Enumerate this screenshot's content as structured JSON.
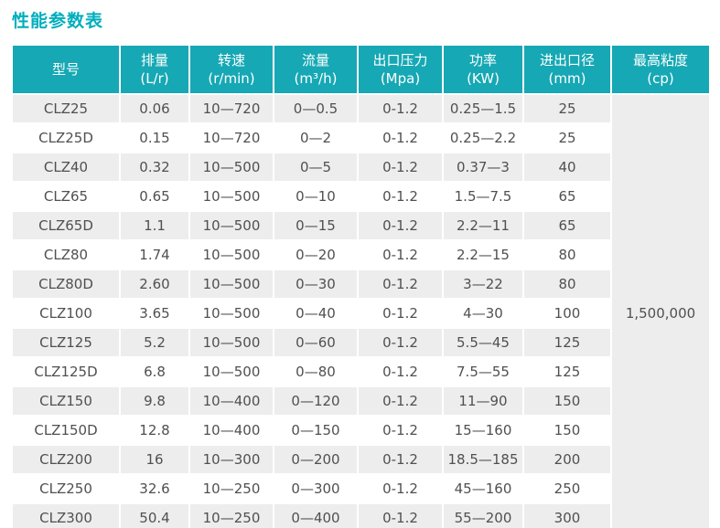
{
  "page_title": "性能参数表",
  "colors": {
    "accent_teal": "#16a8b4",
    "title_teal": "#00aebd",
    "row_stripe": "#ededed",
    "cell_text": "#4f5052",
    "header_text": "#ffffff"
  },
  "table": {
    "columns": [
      {
        "label": "型号",
        "unit": ""
      },
      {
        "label": "排量",
        "unit": "(L/r)"
      },
      {
        "label": "转速",
        "unit": "(r/min)"
      },
      {
        "label": "流量",
        "unit": "(m³/h)"
      },
      {
        "label": "出口压力",
        "unit": "(Mpa)"
      },
      {
        "label": "功率",
        "unit": "(KW)"
      },
      {
        "label": "进出口径",
        "unit": "(mm)"
      },
      {
        "label": "最高粘度",
        "unit": "(cp)"
      }
    ],
    "rows": [
      [
        "CLZ25",
        "0.06",
        "10—720",
        "0—0.5",
        "0-1.2",
        "0.25—1.5",
        "25"
      ],
      [
        "CLZ25D",
        "0.15",
        "10—720",
        "0—2",
        "0-1.2",
        "0.25—2.2",
        "25"
      ],
      [
        "CLZ40",
        "0.32",
        "10—500",
        "0—5",
        "0-1.2",
        "0.37—3",
        "40"
      ],
      [
        "CLZ65",
        "0.65",
        "10—500",
        "0—10",
        "0-1.2",
        "1.5—7.5",
        "65"
      ],
      [
        "CLZ65D",
        "1.1",
        "10—500",
        "0—15",
        "0-1.2",
        "2.2—11",
        "65"
      ],
      [
        "CLZ80",
        "1.74",
        "10—500",
        "0—20",
        "0-1.2",
        "2.2—15",
        "80"
      ],
      [
        "CLZ80D",
        "2.60",
        "10—500",
        "0—30",
        "0-1.2",
        "3—22",
        "80"
      ],
      [
        "CLZ100",
        "3.65",
        "10—500",
        "0—40",
        "0-1.2",
        "4—30",
        "100"
      ],
      [
        "CLZ125",
        "5.2",
        "10—500",
        "0—60",
        "0-1.2",
        "5.5—45",
        "125"
      ],
      [
        "CLZ125D",
        "6.8",
        "10—500",
        "0—80",
        "0-1.2",
        "7.5—55",
        "125"
      ],
      [
        "CLZ150",
        "9.8",
        "10—400",
        "0—120",
        "0-1.2",
        "11—90",
        "150"
      ],
      [
        "CLZ150D",
        "12.8",
        "10—400",
        "0—150",
        "0-1.2",
        "15—160",
        "150"
      ],
      [
        "CLZ200",
        "16",
        "10—300",
        "0—200",
        "0-1.2",
        "18.5—185",
        "200"
      ],
      [
        "CLZ250",
        "32.6",
        "10—250",
        "0—300",
        "0-1.2",
        "45—160",
        "250"
      ],
      [
        "CLZ300",
        "50.4",
        "10—250",
        "0—400",
        "0-1.2",
        "55—200",
        "300"
      ]
    ],
    "merged_last_column_value": "1,500,000"
  }
}
